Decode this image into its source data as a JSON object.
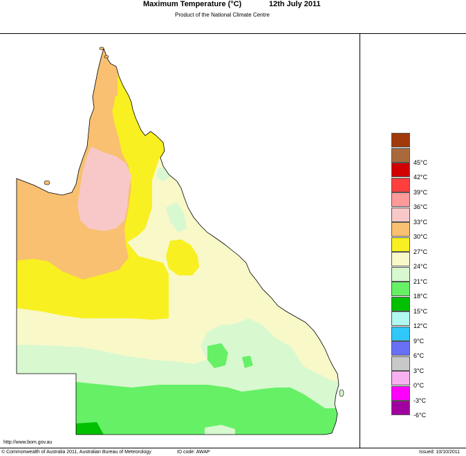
{
  "header": {
    "title": "Maximum Temperature (°C)",
    "date": "12th July 2011",
    "subtitle": "Product of the National Climate Centre"
  },
  "legend": {
    "items": [
      {
        "label": "",
        "color": "#a03a0a"
      },
      {
        "label": "45°C",
        "color": "#a86a3a"
      },
      {
        "label": "42°C",
        "color": "#d00000"
      },
      {
        "label": "39°C",
        "color": "#ff3e3e"
      },
      {
        "label": "36°C",
        "color": "#ff9a9a"
      },
      {
        "label": "33°C",
        "color": "#f8c8c8"
      },
      {
        "label": "30°C",
        "color": "#f8c070"
      },
      {
        "label": "27°C",
        "color": "#f8f020"
      },
      {
        "label": "24°C",
        "color": "#f8f8c8"
      },
      {
        "label": "21°C",
        "color": "#d8f8d0"
      },
      {
        "label": "18°C",
        "color": "#66f066"
      },
      {
        "label": "15°C",
        "color": "#00c000"
      },
      {
        "label": "12°C",
        "color": "#b0f8f0"
      },
      {
        "label": "9°C",
        "color": "#30c8f8"
      },
      {
        "label": "6°C",
        "color": "#6870f8"
      },
      {
        "label": "3°C",
        "color": "#c8c8c8"
      },
      {
        "label": "0°C",
        "color": "#f8b0f0"
      },
      {
        "label": "-3°C",
        "color": "#ff00ff"
      },
      {
        "label": "-6°C",
        "color": "#a000a0"
      }
    ]
  },
  "map": {
    "region": "Queensland",
    "colors": {
      "c30": "#f8c070",
      "c33": "#f8c8c8",
      "c27": "#f8f020",
      "c24": "#f8f8c8",
      "c21": "#d8f8d0",
      "c18": "#66f066",
      "c15": "#00c000"
    }
  },
  "footer": {
    "url": "http://www.bom.gov.au",
    "copyright": "© Commonwealth of Australia 2011, Australian Bureau of Meteorology",
    "id_code": "ID code: AWAP",
    "issued": "Issued: 10/10/2011"
  }
}
